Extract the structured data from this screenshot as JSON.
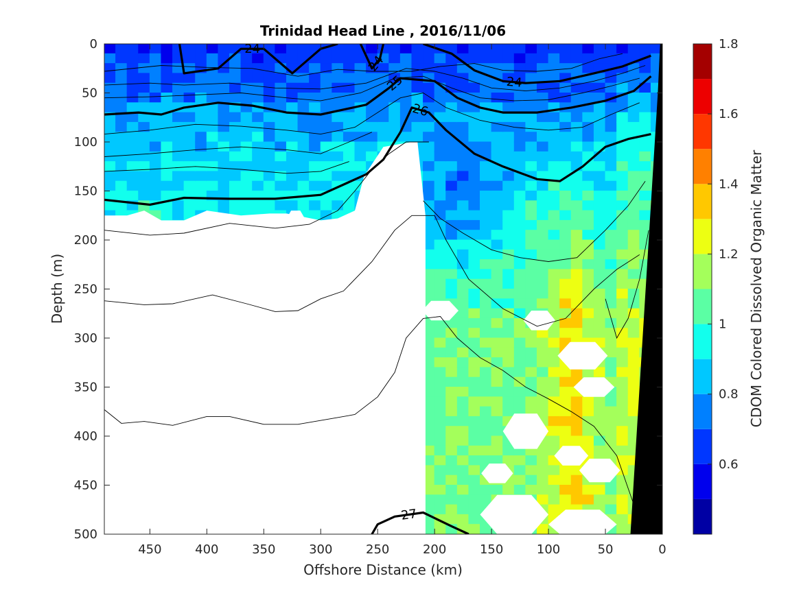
{
  "chart_data": {
    "type": "heatmap",
    "title": "Trinidad Head Line , 2016/11/06",
    "xlabel": "Offshore Distance (km)",
    "ylabel": "Depth (m)",
    "colorbar_label": "CDOM Colored Dissolved Organic Matter",
    "x_ticks": [
      "450",
      "400",
      "350",
      "300",
      "250",
      "200",
      "150",
      "100",
      "50",
      "0"
    ],
    "y_ticks": [
      "0",
      "50",
      "100",
      "150",
      "200",
      "250",
      "300",
      "350",
      "400",
      "450",
      "500"
    ],
    "colorbar_ticks": [
      "0.6",
      "0.8",
      "1",
      "1.2",
      "1.4",
      "1.6",
      "1.8"
    ],
    "xlim": [
      490,
      0
    ],
    "ylim": [
      0,
      500
    ],
    "x_reversed": true,
    "y_reversed": true,
    "clim": [
      0.4,
      1.8
    ],
    "colormap": "jet",
    "colormap_levels": 14,
    "grid": false,
    "contour_variable": "density anomaly (sigma-theta)",
    "contours_labeled": [
      {
        "label": "24",
        "points": [
          [
            424,
            0
          ],
          [
            420,
            30
          ],
          [
            390,
            25
          ],
          [
            370,
            5
          ],
          [
            350,
            5
          ],
          [
            325,
            30
          ],
          [
            300,
            5
          ],
          [
            285,
            0
          ]
        ]
      },
      {
        "label": "24",
        "points": [
          [
            265,
            0
          ],
          [
            255,
            25
          ],
          [
            248,
            15
          ],
          [
            245,
            0
          ]
        ]
      },
      {
        "label": "24",
        "points": [
          [
            210,
            0
          ],
          [
            185,
            10
          ],
          [
            165,
            27
          ],
          [
            140,
            38
          ],
          [
            120,
            40
          ],
          [
            90,
            38
          ],
          [
            60,
            30
          ],
          [
            35,
            23
          ],
          [
            10,
            12
          ]
        ]
      },
      {
        "label": "25",
        "points": [
          [
            490,
            72
          ],
          [
            460,
            70
          ],
          [
            440,
            72
          ],
          [
            420,
            65
          ],
          [
            390,
            60
          ],
          [
            360,
            63
          ],
          [
            330,
            70
          ],
          [
            300,
            72
          ],
          [
            260,
            62
          ],
          [
            240,
            45
          ],
          [
            230,
            35
          ],
          [
            200,
            38
          ],
          [
            180,
            55
          ],
          [
            160,
            65
          ],
          [
            140,
            70
          ],
          [
            110,
            70
          ],
          [
            80,
            65
          ],
          [
            50,
            58
          ],
          [
            25,
            48
          ],
          [
            10,
            33
          ]
        ]
      },
      {
        "label": "26",
        "points": [
          [
            490,
            159
          ],
          [
            450,
            164
          ],
          [
            420,
            157
          ],
          [
            380,
            158
          ],
          [
            340,
            158
          ],
          [
            300,
            154
          ],
          [
            260,
            133
          ],
          [
            245,
            118
          ],
          [
            230,
            90
          ],
          [
            220,
            65
          ],
          [
            205,
            70
          ],
          [
            190,
            88
          ],
          [
            165,
            112
          ],
          [
            140,
            125
          ],
          [
            110,
            138
          ],
          [
            90,
            140
          ],
          [
            70,
            125
          ],
          [
            50,
            105
          ],
          [
            30,
            97
          ],
          [
            10,
            92
          ]
        ]
      },
      {
        "label": "27",
        "points": [
          [
            255,
            500
          ],
          [
            250,
            490
          ],
          [
            235,
            482
          ],
          [
            210,
            478
          ],
          [
            185,
            492
          ],
          [
            170,
            500
          ]
        ]
      }
    ],
    "contours_unlabeled": [
      [
        [
          490,
          28
        ],
        [
          440,
          22
        ],
        [
          400,
          24
        ],
        [
          360,
          25
        ],
        [
          320,
          33
        ],
        [
          285,
          26
        ],
        [
          255,
          28
        ],
        [
          220,
          28
        ],
        [
          195,
          23
        ],
        [
          165,
          20
        ],
        [
          140,
          27
        ],
        [
          110,
          28
        ],
        [
          80,
          25
        ],
        [
          55,
          15
        ],
        [
          35,
          10
        ]
      ],
      [
        [
          490,
          42
        ],
        [
          450,
          40
        ],
        [
          420,
          42
        ],
        [
          380,
          40
        ],
        [
          340,
          45
        ],
        [
          300,
          46
        ],
        [
          260,
          40
        ],
        [
          225,
          25
        ],
        [
          200,
          28
        ],
        [
          175,
          35
        ],
        [
          150,
          45
        ],
        [
          120,
          48
        ],
        [
          90,
          45
        ],
        [
          60,
          38
        ],
        [
          35,
          30
        ],
        [
          15,
          22
        ]
      ],
      [
        [
          490,
          55
        ],
        [
          450,
          54
        ],
        [
          410,
          52
        ],
        [
          370,
          50
        ],
        [
          330,
          55
        ],
        [
          300,
          58
        ],
        [
          265,
          50
        ],
        [
          235,
          35
        ],
        [
          210,
          33
        ],
        [
          185,
          45
        ],
        [
          160,
          55
        ],
        [
          130,
          58
        ],
        [
          100,
          57
        ],
        [
          70,
          50
        ],
        [
          45,
          43
        ],
        [
          20,
          35
        ]
      ],
      [
        [
          490,
          92
        ],
        [
          450,
          88
        ],
        [
          410,
          82
        ],
        [
          370,
          84
        ],
        [
          330,
          88
        ],
        [
          300,
          92
        ],
        [
          270,
          85
        ],
        [
          250,
          70
        ],
        [
          230,
          55
        ],
        [
          210,
          50
        ],
        [
          190,
          65
        ],
        [
          160,
          78
        ],
        [
          130,
          85
        ],
        [
          100,
          88
        ],
        [
          70,
          85
        ],
        [
          45,
          72
        ],
        [
          20,
          60
        ]
      ],
      [
        [
          490,
          115
        ],
        [
          450,
          112
        ],
        [
          410,
          108
        ],
        [
          370,
          105
        ],
        [
          330,
          108
        ],
        [
          300,
          112
        ],
        [
          275,
          100
        ],
        [
          255,
          90
        ]
      ],
      [
        [
          490,
          130
        ],
        [
          450,
          128
        ],
        [
          410,
          125
        ],
        [
          370,
          128
        ],
        [
          330,
          132
        ],
        [
          300,
          130
        ],
        [
          275,
          120
        ]
      ],
      [
        [
          490,
          190
        ],
        [
          450,
          195
        ],
        [
          420,
          193
        ],
        [
          380,
          183
        ],
        [
          340,
          188
        ],
        [
          310,
          184
        ],
        [
          285,
          170
        ],
        [
          270,
          150
        ],
        [
          255,
          128
        ],
        [
          240,
          112
        ],
        [
          225,
          100
        ],
        [
          205,
          100
        ]
      ],
      [
        [
          210,
          160
        ],
        [
          195,
          178
        ],
        [
          175,
          193
        ],
        [
          150,
          210
        ],
        [
          125,
          218
        ],
        [
          100,
          222
        ],
        [
          75,
          218
        ],
        [
          50,
          190
        ],
        [
          30,
          165
        ],
        [
          15,
          140
        ]
      ],
      [
        [
          490,
          262
        ],
        [
          455,
          266
        ],
        [
          430,
          265
        ],
        [
          395,
          256
        ],
        [
          365,
          265
        ],
        [
          340,
          273
        ],
        [
          320,
          272
        ],
        [
          300,
          260
        ],
        [
          280,
          252
        ],
        [
          255,
          222
        ],
        [
          235,
          190
        ],
        [
          220,
          175
        ],
        [
          200,
          175
        ]
      ],
      [
        [
          200,
          175
        ],
        [
          190,
          200
        ],
        [
          170,
          240
        ],
        [
          140,
          270
        ],
        [
          110,
          288
        ],
        [
          85,
          280
        ],
        [
          60,
          250
        ],
        [
          40,
          230
        ],
        [
          20,
          215
        ]
      ],
      [
        [
          490,
          373
        ],
        [
          475,
          387
        ],
        [
          455,
          385
        ],
        [
          430,
          389
        ],
        [
          400,
          380
        ],
        [
          380,
          380
        ],
        [
          350,
          388
        ],
        [
          320,
          388
        ],
        [
          290,
          382
        ],
        [
          270,
          378
        ],
        [
          250,
          360
        ],
        [
          235,
          335
        ],
        [
          225,
          300
        ],
        [
          210,
          280
        ],
        [
          195,
          278
        ],
        [
          180,
          300
        ],
        [
          160,
          320
        ],
        [
          140,
          333
        ],
        [
          120,
          350
        ],
        [
          100,
          362
        ],
        [
          80,
          375
        ],
        [
          60,
          390
        ],
        [
          40,
          420
        ],
        [
          25,
          470
        ]
      ],
      [
        [
          50,
          260
        ],
        [
          40,
          300
        ],
        [
          30,
          280
        ],
        [
          20,
          240
        ],
        [
          12,
          190
        ]
      ]
    ],
    "masked_regions": [
      [
        [
          490,
          175
        ],
        [
          470,
          175
        ],
        [
          455,
          170
        ],
        [
          440,
          180
        ],
        [
          420,
          180
        ],
        [
          400,
          170
        ],
        [
          370,
          175
        ],
        [
          345,
          173
        ],
        [
          330,
          173
        ],
        [
          300,
          180
        ],
        [
          285,
          178
        ],
        [
          270,
          170
        ],
        [
          262,
          135
        ],
        [
          245,
          105
        ],
        [
          220,
          100
        ],
        [
          215,
          100
        ],
        [
          208,
          175
        ],
        [
          208,
          500
        ],
        [
          490,
          500
        ],
        [
          490,
          280
        ]
      ],
      [
        [
          450,
          250
        ],
        [
          420,
          255
        ],
        [
          400,
          245
        ],
        [
          360,
          248
        ],
        [
          330,
          240
        ],
        [
          300,
          240
        ],
        [
          290,
          230
        ],
        [
          270,
          235
        ],
        [
          245,
          250
        ],
        [
          240,
          500
        ],
        [
          450,
          500
        ]
      ]
    ],
    "white_blobs": [
      {
        "x": 322,
        "y": 178,
        "rx": 8,
        "ry": 8
      },
      {
        "x": 195,
        "y": 272,
        "rx": 16,
        "ry": 10
      },
      {
        "x": 108,
        "y": 282,
        "rx": 14,
        "ry": 10
      },
      {
        "x": 70,
        "y": 318,
        "rx": 22,
        "ry": 14
      },
      {
        "x": 60,
        "y": 350,
        "rx": 18,
        "ry": 10
      },
      {
        "x": 120,
        "y": 395,
        "rx": 20,
        "ry": 18
      },
      {
        "x": 80,
        "y": 420,
        "rx": 15,
        "ry": 10
      },
      {
        "x": 55,
        "y": 435,
        "rx": 18,
        "ry": 12
      },
      {
        "x": 145,
        "y": 438,
        "rx": 14,
        "ry": 10
      },
      {
        "x": 130,
        "y": 480,
        "rx": 30,
        "ry": 20
      },
      {
        "x": 70,
        "y": 490,
        "rx": 30,
        "ry": 15
      }
    ],
    "bathymetry": {
      "color": "#000000",
      "polygon": [
        [
          0,
          0
        ],
        [
          0,
          500
        ],
        [
          28,
          500
        ],
        [
          12,
          200
        ],
        [
          4,
          50
        ],
        [
          2,
          0
        ]
      ]
    }
  }
}
